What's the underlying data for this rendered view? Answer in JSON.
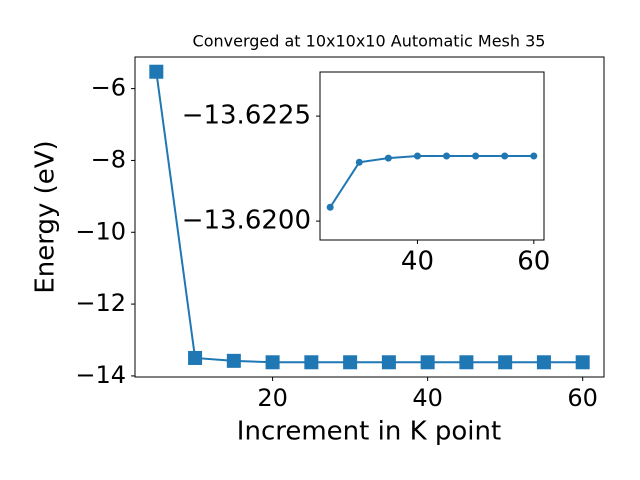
{
  "chart_data": [
    {
      "type": "line",
      "title": "Converged at 10x10x10 Automatic Mesh 35",
      "x_label": "Increment in K point",
      "y_label": "Energy (eV)",
      "x": [
        5,
        10,
        15,
        20,
        25,
        30,
        35,
        40,
        45,
        50,
        55,
        60
      ],
      "series": [
        {
          "color": "#1f77b4",
          "marker": "square",
          "values": [
            -5.53,
            -13.5,
            -13.58,
            -13.62,
            -13.62,
            -13.62,
            -13.62,
            -13.62,
            -13.62,
            -13.62,
            -13.62,
            -13.62
          ]
        }
      ],
      "xlim": [
        2.25,
        62.75
      ],
      "ylim": [
        -14.03,
        -5.12
      ],
      "xticks": [
        20,
        40,
        60
      ],
      "yticks": [
        {
          "value": -14,
          "label": "−14"
        },
        {
          "value": -12,
          "label": "−12"
        },
        {
          "value": -10,
          "label": "−10"
        },
        {
          "value": -8,
          "label": "−8"
        },
        {
          "value": -6,
          "label": "−6"
        }
      ]
    },
    {
      "type": "line",
      "x": [
        25,
        30,
        35,
        40,
        45,
        50,
        55,
        60
      ],
      "series": [
        {
          "color": "#1f77b4",
          "marker": "circle",
          "values": [
            -13.62033,
            -13.6214,
            -13.6215,
            -13.62155,
            -13.62155,
            -13.62155,
            -13.62155,
            -13.62155
          ]
        }
      ],
      "xlim": [
        23.25,
        61.75
      ],
      "ylim": [
        -13.61955,
        -13.62355
      ],
      "xticks": [
        40,
        60
      ],
      "yticks": [
        {
          "value": -13.62,
          "label": "−13.6200"
        },
        {
          "value": -13.6225,
          "label": "−13.6225"
        }
      ]
    }
  ]
}
